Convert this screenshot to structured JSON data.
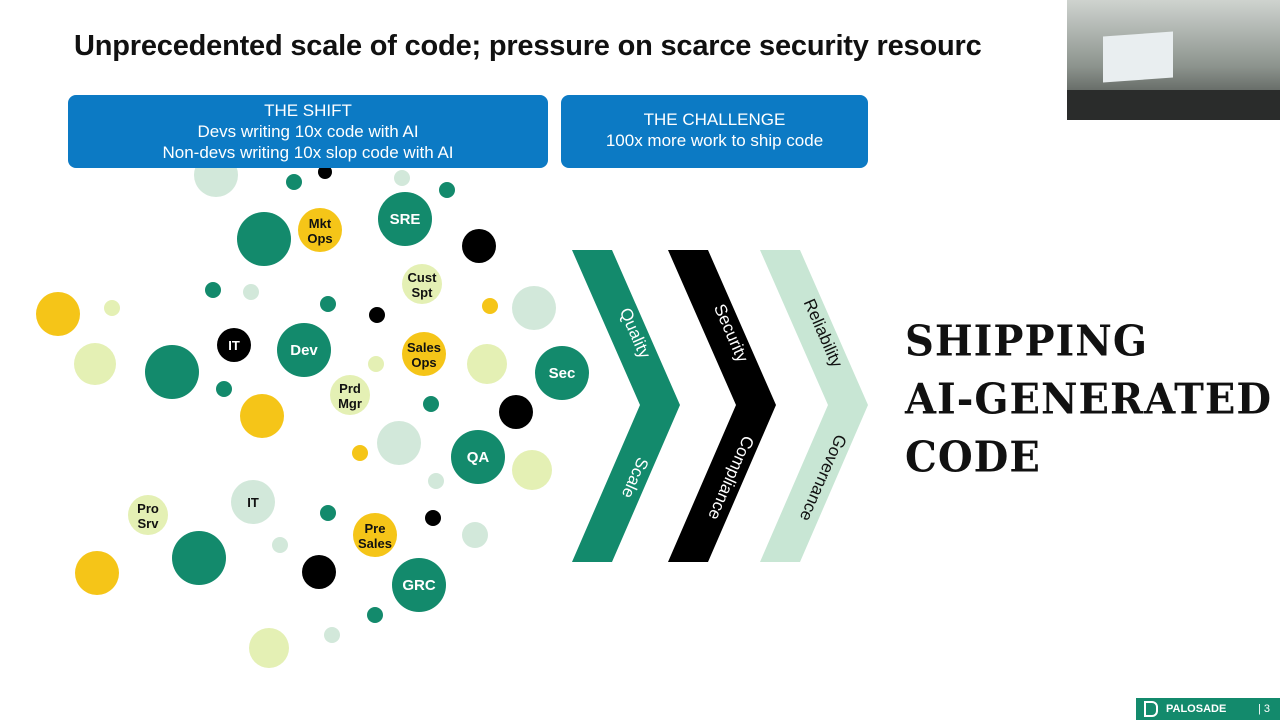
{
  "slide": {
    "title": "Unprecedented scale of code; pressure on scarce security resourc",
    "shift_box": {
      "heading": "THE SHIFT",
      "lines": [
        "Devs writing 10x code with AI",
        "Non-devs writing 10x slop code with AI"
      ]
    },
    "challenge_box": {
      "heading": "THE CHALLENGE",
      "lines": [
        "100x more work to ship code"
      ]
    },
    "chevrons": [
      {
        "top": "Quality",
        "bottom": "Scale",
        "color": "#138a6c",
        "text_color": "#ffffff"
      },
      {
        "top": "Security",
        "bottom": "Compliance",
        "color": "#000000",
        "text_color": "#ffffff"
      },
      {
        "top": "Reliability",
        "bottom": "Governance",
        "color": "#c8e6d4",
        "text_color": "#111111"
      }
    ],
    "bubbles": [
      "Mkt Ops",
      "SRE",
      "Cust Spt",
      "IT",
      "Dev",
      "Sales Ops",
      "Sec",
      "Prd Mgr",
      "QA",
      "IT",
      "Pro Srv",
      "Pre Sales",
      "GRC"
    ],
    "headline": [
      "SHIPPING",
      "AI-GENERATED",
      "CODE"
    ],
    "footer": {
      "brand": "PALOSADE",
      "page": "| 3"
    },
    "colors": {
      "green": "#138a6c",
      "yellow": "#f5c518",
      "light_yellow": "#e4f0b4",
      "pale_green": "#d2e8da",
      "black": "#000000",
      "box_blue": "#0c7ac4"
    }
  }
}
